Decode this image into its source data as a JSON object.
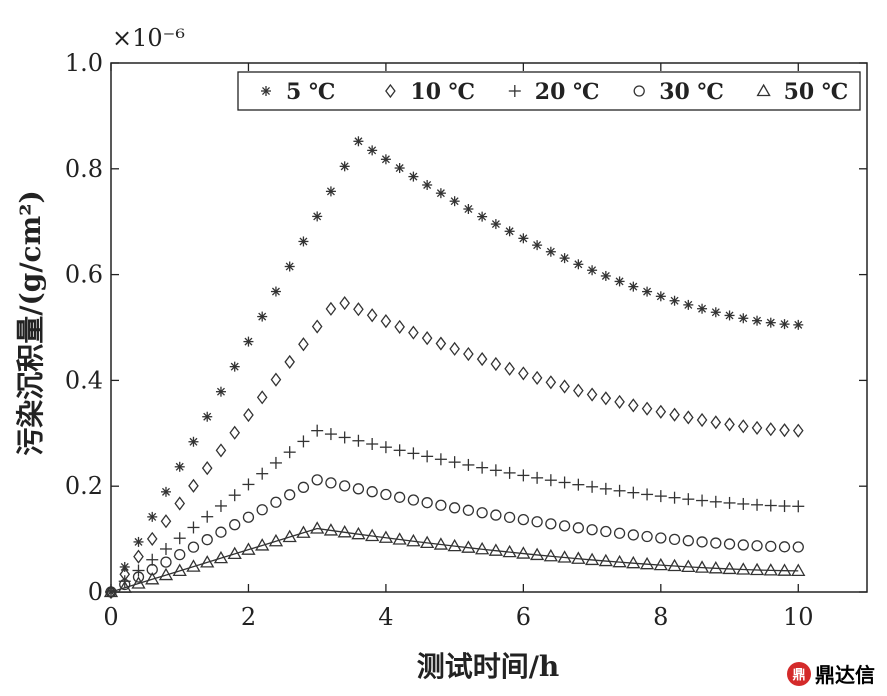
{
  "chart_data": {
    "type": "scatter",
    "title": "",
    "xlabel": "测试时间/h",
    "ylabel": "污染沉积量/(g/cm²)",
    "scale_note": "×10⁻⁶",
    "xlim": [
      0,
      11
    ],
    "ylim": [
      0,
      1.0
    ],
    "xticks": [
      0,
      2,
      4,
      6,
      8,
      10
    ],
    "yticks": [
      "0",
      "0.2",
      "0.4",
      "0.6",
      "0.8",
      "1.0"
    ],
    "grid": false,
    "legend_position": "top",
    "series": [
      {
        "name": "5 ℃",
        "marker": "star",
        "peak_x": 3.6,
        "peak_y": 0.852,
        "end_y": 0.505,
        "x": [
          0,
          0.2,
          0.4,
          0.6,
          0.8,
          1.0,
          1.2,
          1.4,
          1.6,
          1.8,
          2.0,
          2.2,
          2.4,
          2.6,
          2.8,
          3.0,
          3.6,
          4.0,
          5.0,
          6.0,
          7.0,
          8.0,
          9.0,
          10.0
        ],
        "y": [
          0,
          0.055,
          0.088,
          0.125,
          0.165,
          0.205,
          0.25,
          0.3,
          0.35,
          0.4,
          0.45,
          0.51,
          0.575,
          0.64,
          0.72,
          0.83,
          0.852,
          0.84,
          0.79,
          0.73,
          0.66,
          0.6,
          0.545,
          0.505
        ]
      },
      {
        "name": "10 ℃",
        "marker": "diamond",
        "peak_x": 3.3,
        "peak_y": 0.552,
        "end_y": 0.305,
        "x": [
          0,
          0.2,
          0.4,
          0.6,
          0.8,
          1.0,
          1.2,
          1.4,
          1.6,
          1.8,
          2.0,
          2.2,
          2.4,
          2.6,
          2.8,
          3.0,
          3.3,
          4.0,
          5.0,
          6.0,
          7.0,
          8.0,
          9.0,
          10.0
        ],
        "y": [
          0,
          0.035,
          0.06,
          0.09,
          0.12,
          0.15,
          0.18,
          0.215,
          0.25,
          0.285,
          0.32,
          0.36,
          0.4,
          0.445,
          0.49,
          0.54,
          0.552,
          0.51,
          0.44,
          0.39,
          0.355,
          0.33,
          0.315,
          0.305
        ]
      },
      {
        "name": "20 ℃",
        "marker": "plus",
        "peak_x": 3.0,
        "peak_y": 0.305,
        "end_y": 0.162,
        "x": [
          0,
          0.2,
          0.4,
          0.6,
          0.8,
          1.0,
          1.2,
          1.4,
          1.6,
          1.8,
          2.0,
          2.2,
          2.4,
          2.6,
          2.8,
          3.0,
          3.1,
          3.3,
          3.6,
          4.0,
          5.0,
          6.0,
          7.0,
          8.0,
          9.0,
          10.0
        ],
        "y": [
          0,
          0.02,
          0.04,
          0.06,
          0.08,
          0.1,
          0.12,
          0.135,
          0.15,
          0.17,
          0.185,
          0.205,
          0.225,
          0.248,
          0.27,
          0.305,
          0.275,
          0.255,
          0.24,
          0.225,
          0.195,
          0.18,
          0.17,
          0.165,
          0.162,
          0.162
        ]
      },
      {
        "name": "30 ℃",
        "marker": "circle",
        "peak_x": 3.0,
        "peak_y": 0.212,
        "end_y": 0.085,
        "x": [
          0,
          0.2,
          0.4,
          0.6,
          0.8,
          1.0,
          1.2,
          1.4,
          1.6,
          1.8,
          2.0,
          2.2,
          2.4,
          2.6,
          2.8,
          3.0,
          3.2,
          3.4,
          3.6,
          4.0,
          5.0,
          6.0,
          7.0,
          8.0,
          9.0,
          10.0
        ],
        "y": [
          0,
          0.015,
          0.03,
          0.045,
          0.06,
          0.075,
          0.09,
          0.1,
          0.11,
          0.125,
          0.14,
          0.155,
          0.17,
          0.183,
          0.198,
          0.212,
          0.18,
          0.162,
          0.15,
          0.14,
          0.12,
          0.105,
          0.095,
          0.09,
          0.087,
          0.085
        ]
      },
      {
        "name": "50 ℃",
        "marker": "triangle",
        "peak_x": 3.0,
        "peak_y": 0.12,
        "end_y": 0.04,
        "x": [
          0,
          0.2,
          0.4,
          0.6,
          0.8,
          1.0,
          1.2,
          1.4,
          1.6,
          1.8,
          2.0,
          2.2,
          2.4,
          2.6,
          2.8,
          3.0,
          3.2,
          3.4,
          3.6,
          4.0,
          5.0,
          6.0,
          7.0,
          8.0,
          9.0,
          10.0
        ],
        "y": [
          0,
          0.01,
          0.02,
          0.03,
          0.04,
          0.048,
          0.056,
          0.064,
          0.072,
          0.08,
          0.088,
          0.096,
          0.104,
          0.11,
          0.116,
          0.12,
          0.112,
          0.108,
          0.104,
          0.1,
          0.086,
          0.074,
          0.062,
          0.052,
          0.045,
          0.04
        ]
      }
    ]
  },
  "watermark": {
    "logo": "鼎",
    "text": "鼎达信"
  }
}
